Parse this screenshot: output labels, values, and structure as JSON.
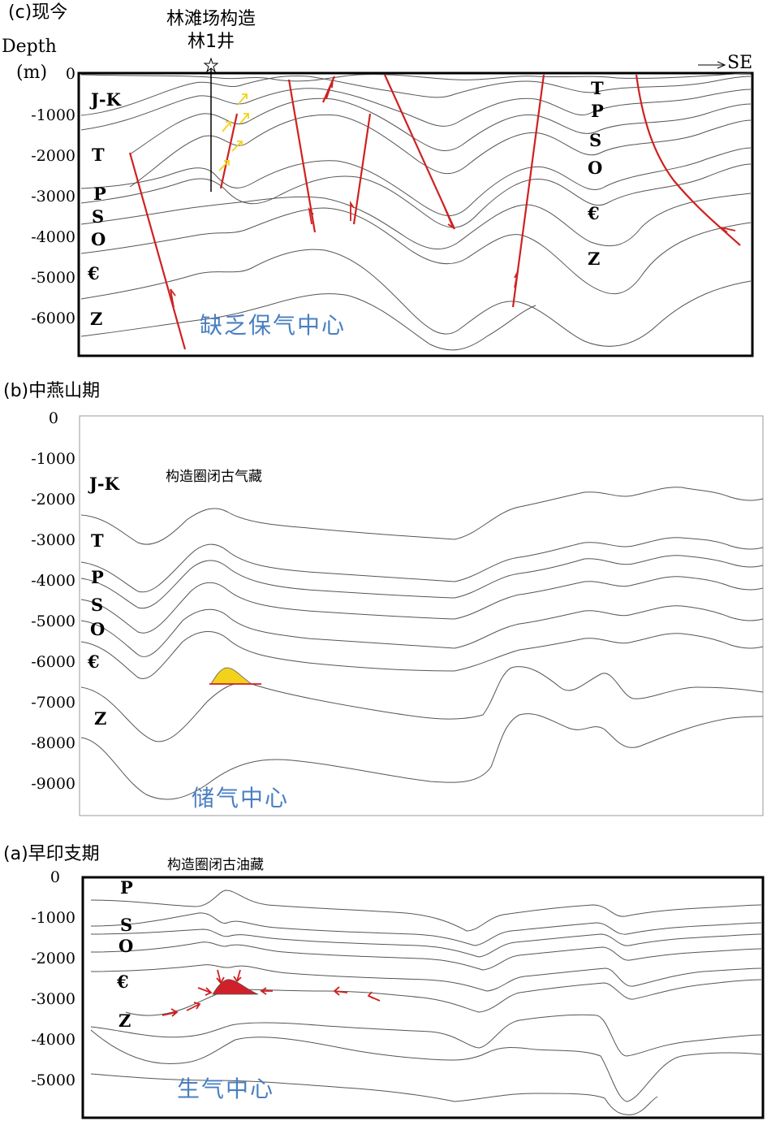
{
  "panels": {
    "c": {
      "title": "(c)现今",
      "well_structure": "林滩场构造",
      "well_name": "林1井",
      "depth_label": "Depth",
      "depth_unit": "(m)",
      "direction": "SE",
      "ticks": [
        "0",
        "-1000",
        "-2000",
        "-3000",
        "-4000",
        "-5000",
        "-6000"
      ],
      "strata_left": [
        "J-K",
        "T",
        "P",
        "S",
        "O",
        "€",
        "Z"
      ],
      "strata_right": [
        "T",
        "P",
        "S",
        "O",
        "€",
        "Z"
      ],
      "annotation": "缺乏保气中心"
    },
    "b": {
      "title": "(b)中燕山期",
      "ticks": [
        "0",
        "-1000",
        "-2000",
        "-3000",
        "-4000",
        "-5000",
        "-6000",
        "-7000",
        "-8000",
        "-9000"
      ],
      "strata": [
        "J-K",
        "T",
        "P",
        "S",
        "O",
        "€",
        "Z"
      ],
      "note": "构造圈闭古气藏",
      "annotation": "储气中心"
    },
    "a": {
      "title": "(a)早印支期",
      "ticks": [
        "0",
        "-1000",
        "-2000",
        "-3000",
        "-4000",
        "-5000"
      ],
      "strata": [
        "P",
        "S",
        "O",
        "€",
        "Z"
      ],
      "note": "构造圈闭古油藏",
      "annotation": "生气中心"
    }
  },
  "colors": {
    "fault": "#d02020",
    "horizon": "#555555",
    "annotation": "#4a7fc1",
    "gas_reservoir": "#f3d21d",
    "oil_reservoir": "#d0202a"
  }
}
